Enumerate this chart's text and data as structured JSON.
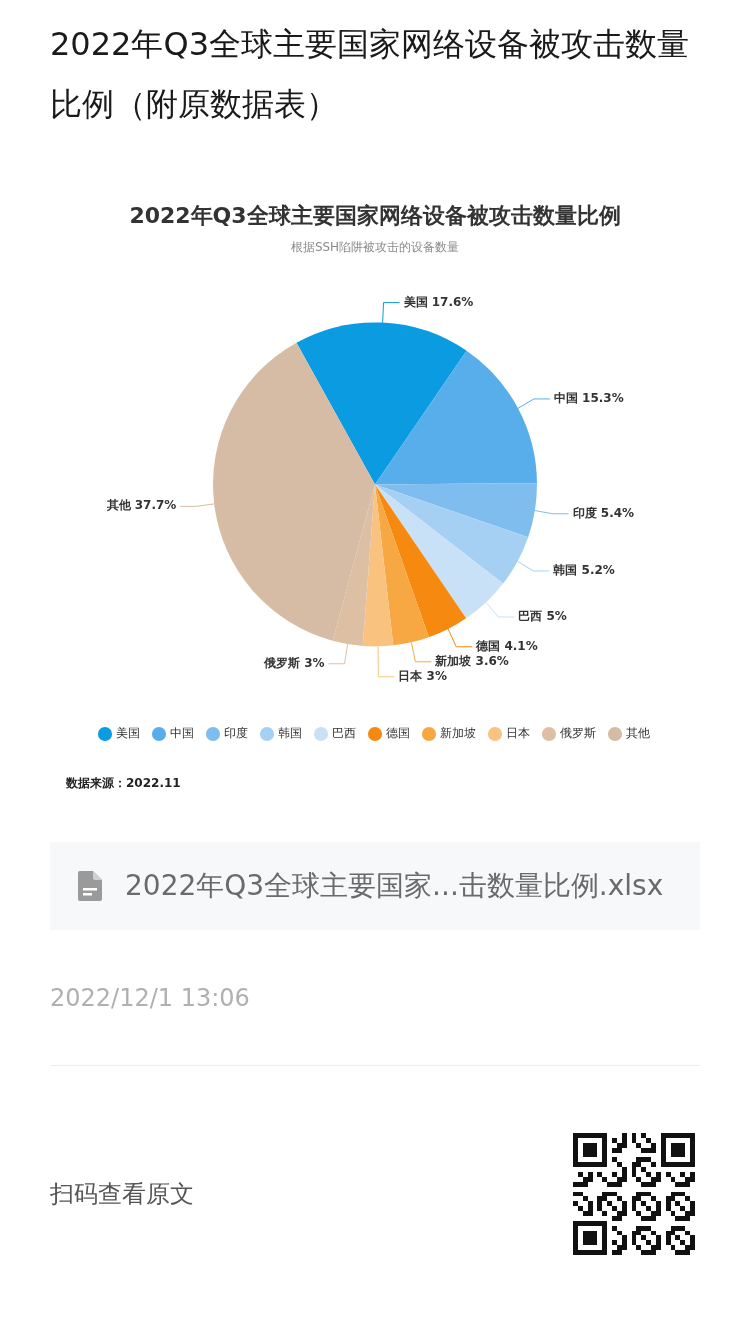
{
  "chart_data": {
    "type": "pie",
    "title": "2022年Q3全球主要国家网络设备被攻击数量比例",
    "subtitle": "根据SSH陷阱被攻击的设备数量",
    "categories": [
      "美国",
      "中国",
      "印度",
      "韩国",
      "巴西",
      "德国",
      "新加坡",
      "日本",
      "俄罗斯",
      "其他"
    ],
    "values": [
      17.6,
      15.3,
      5.4,
      5.2,
      5,
      4.1,
      3.6,
      3,
      3,
      37.7
    ],
    "colors": [
      "#0a9be0",
      "#58aeeb",
      "#7fbdee",
      "#a6d0f3",
      "#c9e1f6",
      "#f6890f",
      "#f8a843",
      "#f9c27f",
      "#ddc0a3",
      "#d6bca4"
    ],
    "value_labels": [
      "美国 17.6%",
      "中国 15.3%",
      "印度 5.4%",
      "韩国 5.2%",
      "巴西 5%",
      "德国 4.1%",
      "新加坡 3.6%",
      "日本 3%",
      "俄罗斯 3%",
      "其他 37.7%"
    ],
    "legend": "bottom",
    "annotations": [
      "2022年Q3全球主要国家网络设备被攻击数量比例（附原数据表）",
      "数据来源：2022.11",
      "2022年Q3全球主要国家...击数量比例.xlsx",
      "2022/12/1 13:06",
      "扫码查看原文"
    ]
  }
}
